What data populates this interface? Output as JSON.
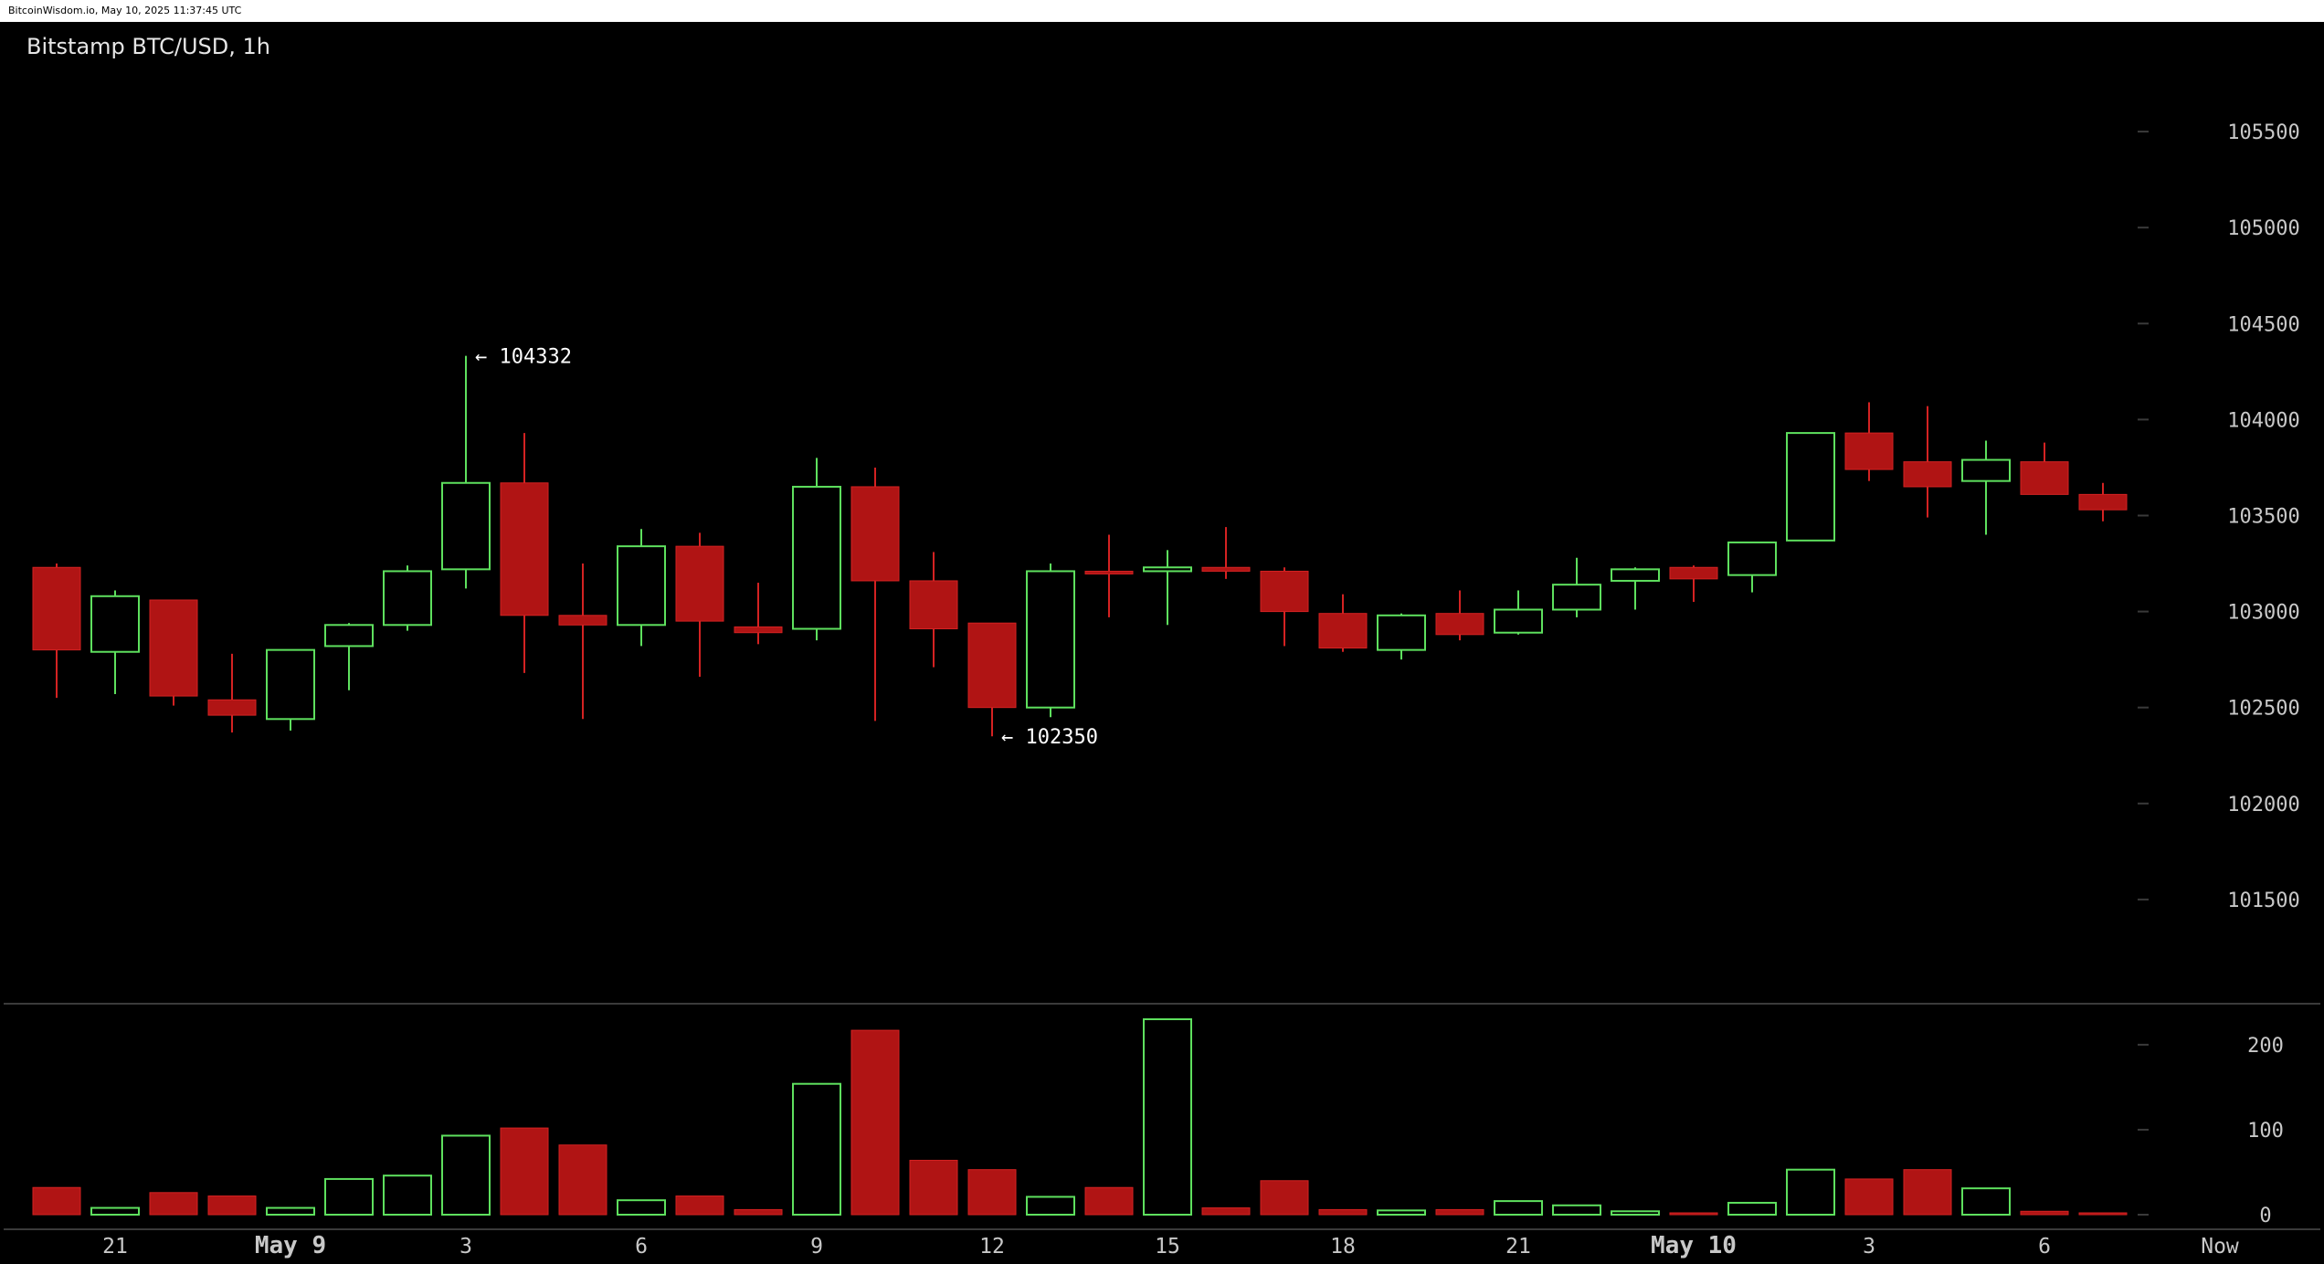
{
  "header": {
    "timestamp": "BitcoinWisdom.io, May 10, 2025 11:37:45 UTC"
  },
  "colors": {
    "up": "#5ee05e",
    "down": "#b01414",
    "down_border": "#d42222",
    "grid": "#3a3a3a",
    "text": "#c8c8c8"
  },
  "chart_data": {
    "type": "candlestick",
    "title": "Bitstamp BTC/USD, 1h",
    "y_ticks": [
      101500,
      102000,
      102500,
      103000,
      103500,
      104000,
      104500,
      105000,
      105500
    ],
    "ylim": [
      101000,
      105900
    ],
    "volume_ticks": [
      0,
      100,
      200
    ],
    "volume_lim": [
      0,
      230
    ],
    "x_tick_labels": [
      {
        "label": "21",
        "index": 1,
        "major": false
      },
      {
        "label": "May 9",
        "index": 4,
        "major": true
      },
      {
        "label": "3",
        "index": 7,
        "major": false
      },
      {
        "label": "6",
        "index": 10,
        "major": false
      },
      {
        "label": "9",
        "index": 13,
        "major": false
      },
      {
        "label": "12",
        "index": 16,
        "major": false
      },
      {
        "label": "15",
        "index": 19,
        "major": false
      },
      {
        "label": "18",
        "index": 22,
        "major": false
      },
      {
        "label": "21",
        "index": 25,
        "major": false
      },
      {
        "label": "May 10",
        "index": 28,
        "major": true
      },
      {
        "label": "3",
        "index": 31,
        "major": false
      },
      {
        "label": "6",
        "index": 34,
        "major": false
      },
      {
        "label": "Now",
        "index": 37,
        "major": false
      }
    ],
    "annotations": [
      {
        "label": "← 104332",
        "index": 7,
        "value": 104332
      },
      {
        "label": "← 102350",
        "index": 16,
        "value": 102350
      }
    ],
    "candles": [
      {
        "o": 103230,
        "h": 103250,
        "l": 102550,
        "c": 102800,
        "v": 32
      },
      {
        "o": 102790,
        "h": 103110,
        "l": 102570,
        "c": 103080,
        "v": 8
      },
      {
        "o": 103060,
        "h": 103060,
        "l": 102510,
        "c": 102560,
        "v": 26
      },
      {
        "o": 102540,
        "h": 102780,
        "l": 102370,
        "c": 102460,
        "v": 22
      },
      {
        "o": 102440,
        "h": 102800,
        "l": 102380,
        "c": 102800,
        "v": 8
      },
      {
        "o": 102820,
        "h": 102940,
        "l": 102590,
        "c": 102930,
        "v": 42
      },
      {
        "o": 102930,
        "h": 103240,
        "l": 102900,
        "c": 103210,
        "v": 46
      },
      {
        "o": 103220,
        "h": 104332,
        "l": 103120,
        "c": 103670,
        "v": 93
      },
      {
        "o": 103670,
        "h": 103930,
        "l": 102680,
        "c": 102980,
        "v": 102
      },
      {
        "o": 102980,
        "h": 103250,
        "l": 102440,
        "c": 102930,
        "v": 82
      },
      {
        "o": 102930,
        "h": 103430,
        "l": 102820,
        "c": 103340,
        "v": 17
      },
      {
        "o": 103340,
        "h": 103410,
        "l": 102660,
        "c": 102950,
        "v": 22
      },
      {
        "o": 102920,
        "h": 103150,
        "l": 102830,
        "c": 102890,
        "v": 6
      },
      {
        "o": 102910,
        "h": 103800,
        "l": 102850,
        "c": 103650,
        "v": 154
      },
      {
        "o": 103650,
        "h": 103750,
        "l": 102430,
        "c": 103160,
        "v": 217
      },
      {
        "o": 103160,
        "h": 103310,
        "l": 102710,
        "c": 102910,
        "v": 64
      },
      {
        "o": 102940,
        "h": 102940,
        "l": 102350,
        "c": 102500,
        "v": 53
      },
      {
        "o": 102500,
        "h": 103250,
        "l": 102450,
        "c": 103210,
        "v": 21
      },
      {
        "o": 103210,
        "h": 103400,
        "l": 102970,
        "c": 103200,
        "v": 32
      },
      {
        "o": 103210,
        "h": 103320,
        "l": 102930,
        "c": 103230,
        "v": 230
      },
      {
        "o": 103230,
        "h": 103440,
        "l": 103170,
        "c": 103210,
        "v": 8
      },
      {
        "o": 103210,
        "h": 103230,
        "l": 102820,
        "c": 103000,
        "v": 40
      },
      {
        "o": 102990,
        "h": 103090,
        "l": 102790,
        "c": 102810,
        "v": 6
      },
      {
        "o": 102800,
        "h": 102990,
        "l": 102750,
        "c": 102980,
        "v": 5
      },
      {
        "o": 102990,
        "h": 103110,
        "l": 102850,
        "c": 102880,
        "v": 6
      },
      {
        "o": 102890,
        "h": 103110,
        "l": 102880,
        "c": 103010,
        "v": 16
      },
      {
        "o": 103010,
        "h": 103280,
        "l": 102970,
        "c": 103140,
        "v": 11
      },
      {
        "o": 103160,
        "h": 103230,
        "l": 103010,
        "c": 103220,
        "v": 4
      },
      {
        "o": 103230,
        "h": 103240,
        "l": 103050,
        "c": 103170,
        "v": 2
      },
      {
        "o": 103190,
        "h": 103360,
        "l": 103100,
        "c": 103360,
        "v": 14
      },
      {
        "o": 103370,
        "h": 103930,
        "l": 103370,
        "c": 103930,
        "v": 53
      },
      {
        "o": 103930,
        "h": 104090,
        "l": 103680,
        "c": 103740,
        "v": 42
      },
      {
        "o": 103780,
        "h": 104070,
        "l": 103490,
        "c": 103650,
        "v": 53
      },
      {
        "o": 103680,
        "h": 103890,
        "l": 103400,
        "c": 103790,
        "v": 31
      },
      {
        "o": 103780,
        "h": 103880,
        "l": 103610,
        "c": 103610,
        "v": 4
      },
      {
        "o": 103610,
        "h": 103670,
        "l": 103470,
        "c": 103530,
        "v": 2
      }
    ]
  }
}
